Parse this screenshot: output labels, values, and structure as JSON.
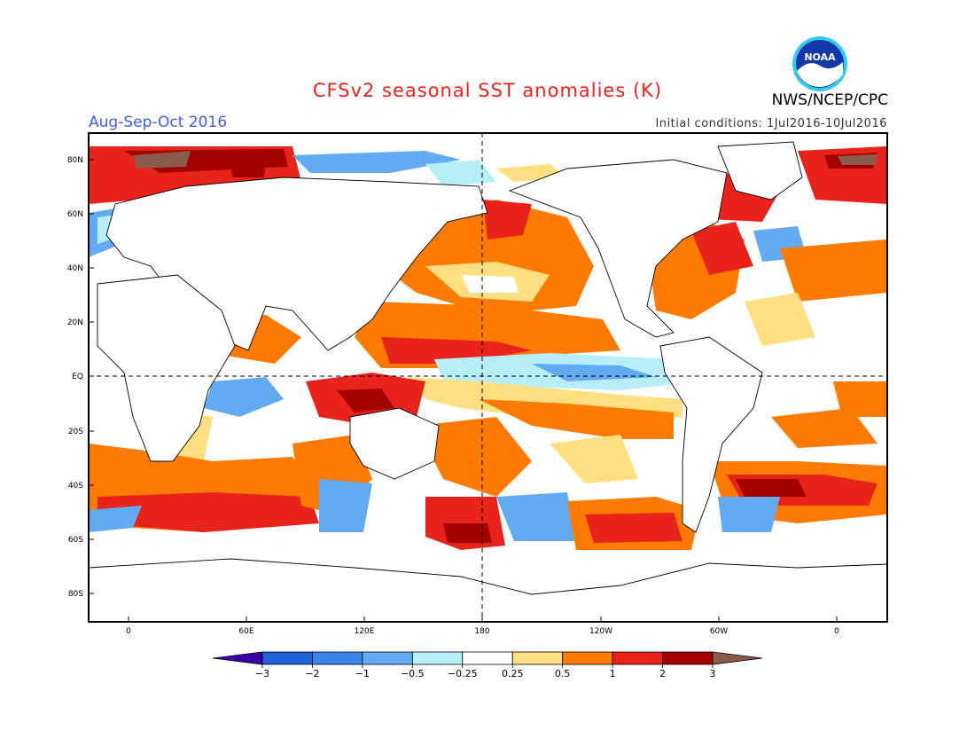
{
  "header": {
    "title": "CFSv2 seasonal SST anomalies (K)",
    "season": "Aug-Sep-Oct 2016",
    "initial_conditions": "Initial conditions: 1Jul2016-10Jul2016",
    "agency": "NWS/NCEP/CPC",
    "logo_text": "NOAA"
  },
  "map": {
    "lat_labels": [
      "80N",
      "60N",
      "40N",
      "20N",
      "EQ",
      "20S",
      "40S",
      "60S",
      "80S"
    ],
    "lon_labels": [
      "0",
      "60E",
      "120E",
      "180",
      "120W",
      "60W",
      "0"
    ],
    "projection": "cylindrical equidistant",
    "reference_lines": [
      "Equator",
      "180"
    ]
  },
  "colorbar": {
    "unit": "K",
    "labels": [
      "-3",
      "-2",
      "-1",
      "-0.5",
      "-0.25",
      "0.25",
      "0.5",
      "1",
      "2",
      "3"
    ],
    "colors": [
      "#3a00a6",
      "#1f60d8",
      "#3a85e8",
      "#62aaf2",
      "#b8eef8",
      "#ffffff",
      "#ffdf7f",
      "#ff7a00",
      "#e8231c",
      "#a30000",
      "#8b5a4a"
    ]
  }
}
